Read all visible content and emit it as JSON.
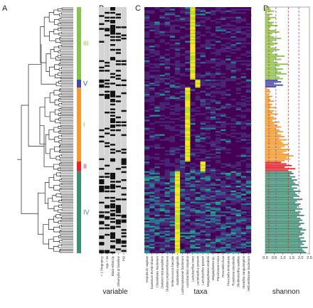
{
  "panels": {
    "a": "A",
    "b": "B",
    "c": "C",
    "d": "D"
  },
  "axis_titles": {
    "variable": "variable",
    "taxa": "taxa",
    "shannon": "shannon"
  },
  "clades": [
    {
      "label": "III",
      "color": "#8bc34a"
    },
    {
      "label": "V",
      "color": "#3f48a8"
    },
    {
      "label": "I",
      "color": "#f39c2c"
    },
    {
      "label": "II",
      "color": "#e8242a"
    },
    {
      "label": "IV",
      "color": "#3e8e73"
    }
  ],
  "variables": [
    "< 1 Pregnancy",
    "Age > 35",
    "Black ethnicity",
    "Chlamydia at baseline",
    "PID"
  ],
  "taxa": [
    "Atopobium vaginae",
    "bacterium BVAB-Shaon",
    "Clostridiales bacterium",
    "Dialister micraerophilus",
    "Dialister propionicifaciens",
    "Enterococcus faecalis",
    "Gardnerella vaginalis",
    "Lachnospiraceae bacterium",
    "Lactobacillus crispatus",
    "Lactobacillus iners",
    "Lactobacillus jensenii",
    "Lactobacillus gasseri",
    "Megasphaera elsdenii",
    "Megasphaera sp.",
    "Parvimonas micra",
    "Prevotella bivia",
    "Prevotella timonensis",
    "Roseburia intestinalis",
    "Shuttleworthia satelles",
    "Sneathia sanguinegens",
    "Veillonellaceae bacterium"
  ],
  "chart_data": [
    {
      "type": "dendrogram",
      "panel": "A",
      "clusters": [
        "III",
        "V",
        "I",
        "II",
        "IV"
      ]
    },
    {
      "type": "heatmap",
      "panel": "B",
      "xlabel": "variable",
      "columns": [
        "< 1 Pregnancy",
        "Age > 35",
        "Black ethnicity",
        "Chlamydia at baseline",
        "PID"
      ],
      "colors": {
        "present": "#111111",
        "absent": "#d4d4d4"
      }
    },
    {
      "type": "heatmap",
      "panel": "C",
      "xlabel": "taxa",
      "palette": "viridis",
      "colors": {
        "low": "#440154",
        "mid": "#21918c",
        "high": "#fde725"
      },
      "dominant_taxon_by_cluster": {
        "III": "Lactobacillus iners",
        "V": "Lactobacillus jensenii",
        "I": "Lactobacillus crispatus",
        "II": "Lactobacillus gasseri",
        "IV": "Gardnerella vaginalis"
      }
    },
    {
      "type": "bar",
      "panel": "D",
      "orientation": "horizontal",
      "xlabel": "shannon",
      "xlim": [
        0,
        2.5
      ],
      "xticks": [
        "0.0",
        "0.5",
        "1.0",
        "1.5",
        "2.0",
        "2.5"
      ],
      "reference_lines": [
        {
          "color": "#e8242a",
          "style": "dashed",
          "values": [
            0.2,
            1.3
          ]
        },
        {
          "color": "#a040d0",
          "style": "dashed",
          "values": [
            0.6,
            1.9
          ]
        }
      ],
      "clusters": [
        {
          "label": "III",
          "color": "#8bc34a",
          "values": [
            0.2,
            0.3,
            0.5,
            0.1,
            0.4,
            0.2,
            0.6,
            0.3,
            0.2,
            0.5,
            0.4,
            0.7,
            0.3,
            0.2,
            0.6,
            0.8,
            0.4,
            0.3,
            0.5,
            0.9,
            0.6,
            0.4,
            0.7,
            0.5,
            0.3,
            0.6,
            0.8,
            0.5,
            0.4,
            0.7,
            1.1,
            0.6,
            0.9,
            0.5,
            0.7,
            1.3,
            0.8,
            0.6,
            1.0,
            0.7,
            0.9,
            1.2,
            0.6,
            0.8,
            1.0
          ]
        },
        {
          "label": "V",
          "color": "#3f48a8",
          "values": [
            0.7,
            0.9,
            0.5,
            1.0,
            0.6
          ]
        },
        {
          "label": "I",
          "color": "#f39c2c",
          "values": [
            0.1,
            0.2,
            0.3,
            0.1,
            0.2,
            0.4,
            0.2,
            0.3,
            0.5,
            0.2,
            0.4,
            0.3,
            0.6,
            0.2,
            0.5,
            0.4,
            0.7,
            0.3,
            0.5,
            0.6,
            0.4,
            0.8,
            0.5,
            0.7,
            0.9,
            0.6,
            0.8,
            1.0,
            0.7,
            0.9,
            1.1,
            0.8,
            1.2,
            0.9,
            1.0,
            1.3,
            1.1,
            0.9,
            1.4,
            1.2,
            1.0,
            1.3,
            1.6,
            1.2,
            1.4,
            1.1
          ]
        },
        {
          "label": "II",
          "color": "#e8242a",
          "values": [
            0.9,
            1.2,
            1.5,
            1.1,
            1.7,
            1.3
          ]
        },
        {
          "label": "IV",
          "color": "#3e8e73",
          "values": [
            1.5,
            1.6,
            1.4,
            1.7,
            1.5,
            1.8,
            1.6,
            1.7,
            1.9,
            1.5,
            1.8,
            1.6,
            2.0,
            1.7,
            1.8,
            1.9,
            1.6,
            2.1,
            1.8,
            1.7,
            2.0,
            1.9,
            1.8,
            2.1,
            1.7,
            2.0,
            1.9,
            2.2,
            1.8,
            2.0,
            2.1,
            1.9,
            2.2,
            2.0,
            1.9,
            2.1,
            2.3,
            2.0,
            2.2,
            2.1,
            1.9,
            2.2,
            2.0,
            2.3,
            2.1,
            2.2,
            2.0,
            2.4,
            2.1,
            2.2,
            2.3
          ]
        }
      ]
    }
  ]
}
